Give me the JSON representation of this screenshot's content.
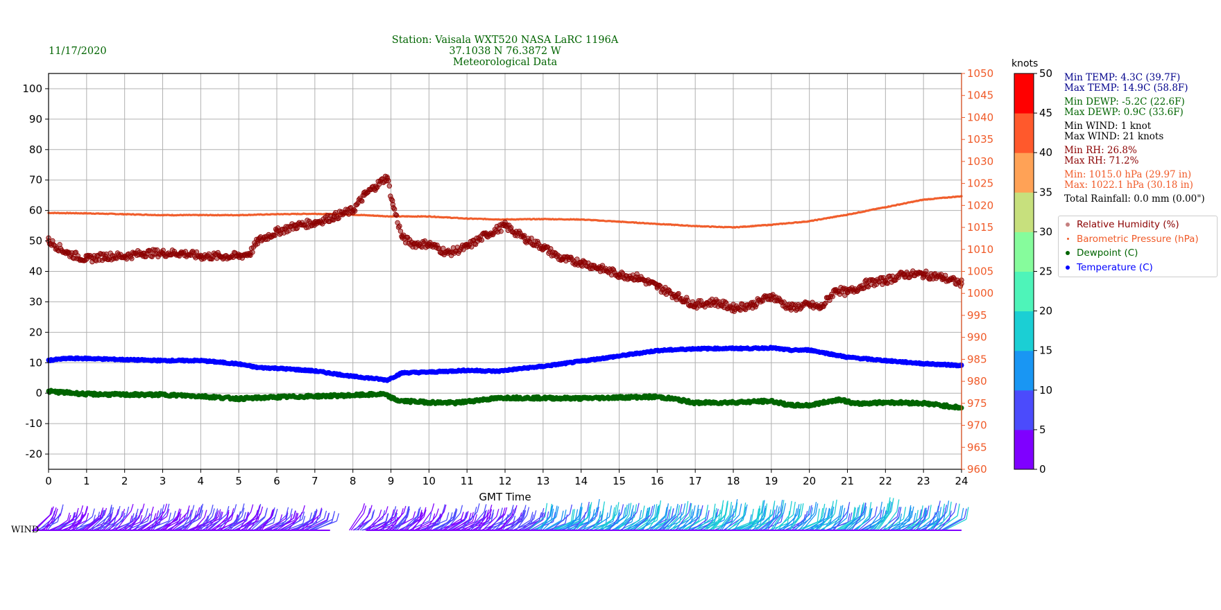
{
  "date": "11/17/2020",
  "title_lines": [
    "Station:  Vaisala WXT520  NASA LaRC 1196A",
    "37.1038 N 76.3872 W",
    "Meteorological Data"
  ],
  "wind_label": "WIND",
  "colorbar": {
    "unit": "knots",
    "ticks": [
      "0",
      "5",
      "10",
      "15",
      "20",
      "25",
      "30",
      "35",
      "40",
      "45",
      "50"
    ],
    "colors": [
      "#7f00ff",
      "#4b4bfc",
      "#1996f3",
      "#1bcfd4",
      "#4ef4b9",
      "#86fc9c",
      "#c7e07d",
      "#ffa256",
      "#ff592c",
      "#ff0000"
    ]
  },
  "stats": [
    {
      "text": "Min TEMP: 4.3C (39.7F)",
      "color": "#00008b"
    },
    {
      "text": "Max TEMP: 14.9C (58.8F)",
      "color": "#00008b"
    },
    {
      "text": "Min DEWP: -5.2C (22.6F)",
      "color": "#006400"
    },
    {
      "text": "Max DEWP: 0.9C (33.6F)",
      "color": "#006400"
    },
    {
      "text": "Min WIND: 1 knot",
      "color": "#000000"
    },
    {
      "text": "Max WIND: 21 knots",
      "color": "#000000"
    },
    {
      "text": "Min RH: 26.8%",
      "color": "#8b0000"
    },
    {
      "text": "Max RH: 71.2%",
      "color": "#8b0000"
    },
    {
      "text": "Min: 1015.0 hPa (29.97 in)",
      "color": "#f05a28"
    },
    {
      "text": "Max: 1022.1 hPa (30.18 in)",
      "color": "#f05a28"
    },
    {
      "text": "Total Rainfall: 0.0 mm (0.00\")",
      "color": "#000000"
    }
  ],
  "legend": [
    {
      "label": "Relative Humidity (%)",
      "color": "#8b0000",
      "marker": "rh"
    },
    {
      "label": "Barometric Pressure (hPa)",
      "color": "#f05a28",
      "marker": "bp"
    },
    {
      "label": "Dewpoint (C)",
      "color": "#006400",
      "marker": "dp"
    },
    {
      "label": "Temperature (C)",
      "color": "#0000ff",
      "marker": "tp"
    }
  ],
  "chart_data": {
    "type": "scatter",
    "xlabel": "GMT Time",
    "xlim": [
      0,
      24
    ],
    "x_ticks": [
      0,
      1,
      2,
      3,
      4,
      5,
      6,
      7,
      8,
      9,
      10,
      11,
      12,
      13,
      14,
      15,
      16,
      17,
      18,
      19,
      20,
      21,
      22,
      23,
      24
    ],
    "ylim": [
      -25,
      105
    ],
    "y_ticks": [
      -20,
      -10,
      0,
      10,
      20,
      30,
      40,
      50,
      60,
      70,
      80,
      90,
      100
    ],
    "y2lim": [
      960,
      1050
    ],
    "y2_ticks": [
      960,
      965,
      970,
      975,
      980,
      985,
      990,
      995,
      1000,
      1005,
      1010,
      1015,
      1020,
      1025,
      1030,
      1035,
      1040,
      1045,
      1050
    ],
    "grid": true,
    "series": [
      {
        "name": "Relative Humidity (%)",
        "axis": "left",
        "color": "#8b0000",
        "x": [
          0,
          0.5,
          1,
          1.5,
          2,
          2.5,
          3,
          3.5,
          4,
          4.5,
          5,
          5.3,
          5.5,
          6,
          6.5,
          7,
          7.5,
          8,
          8.3,
          8.6,
          8.9,
          9.05,
          9.3,
          9.6,
          10,
          10.5,
          11,
          11.5,
          12,
          12.5,
          13,
          13.5,
          14,
          14.5,
          15,
          15.5,
          16,
          16.5,
          17,
          17.5,
          18,
          18.5,
          19,
          19.5,
          20,
          20.3,
          20.7,
          21,
          21.5,
          22,
          22.5,
          23,
          23.5,
          24
        ],
        "y": [
          50,
          46,
          44,
          45,
          45,
          46,
          46,
          46,
          45,
          45,
          45,
          46,
          50,
          53,
          55,
          56,
          58,
          60,
          65,
          68,
          71,
          62,
          51,
          49,
          49,
          46,
          48,
          52,
          55,
          51,
          48,
          44,
          43,
          41,
          39,
          38,
          35,
          32,
          29,
          30,
          28,
          29,
          32,
          28,
          29,
          28,
          34,
          33,
          36,
          37,
          39,
          39,
          38,
          36
        ]
      },
      {
        "name": "Barometric Pressure (hPa)",
        "axis": "right",
        "color": "#f05a28",
        "x": [
          0,
          1,
          2,
          3,
          4,
          5,
          6,
          7,
          8,
          9,
          10,
          11,
          12,
          13,
          14,
          15,
          16,
          17,
          18,
          19,
          20,
          21,
          22,
          23,
          24
        ],
        "y": [
          1018.3,
          1018.2,
          1018.0,
          1017.8,
          1017.8,
          1017.8,
          1018.0,
          1018.1,
          1017.9,
          1017.5,
          1017.5,
          1017.0,
          1016.8,
          1016.9,
          1016.8,
          1016.3,
          1015.8,
          1015.3,
          1015.0,
          1015.6,
          1016.4,
          1017.9,
          1019.6,
          1021.3,
          1022.1
        ]
      },
      {
        "name": "Dewpoint (C)",
        "axis": "left",
        "color": "#006400",
        "x": [
          0,
          1,
          2,
          3,
          4,
          5,
          6,
          7,
          8,
          8.8,
          9.2,
          10,
          10.7,
          11.5,
          12,
          13,
          14,
          15,
          16,
          16.5,
          17,
          18,
          19,
          19.5,
          20,
          20.8,
          21.2,
          22,
          23,
          24
        ],
        "y": [
          0.6,
          -0.3,
          -0.5,
          -0.5,
          -1.0,
          -1.8,
          -1.3,
          -1.0,
          -0.7,
          -0.3,
          -2.5,
          -3.0,
          -3.2,
          -2.0,
          -1.5,
          -1.6,
          -1.7,
          -1.4,
          -1.2,
          -2.0,
          -3.2,
          -3.0,
          -2.6,
          -4.0,
          -4.0,
          -2.0,
          -3.5,
          -3.0,
          -3.3,
          -4.8
        ]
      },
      {
        "name": "Temperature (C)",
        "axis": "left",
        "color": "#0000ff",
        "x": [
          0,
          0.5,
          1,
          2,
          3,
          4,
          5,
          5.5,
          6,
          7,
          8,
          8.5,
          8.9,
          9.3,
          10,
          11,
          11.8,
          12.5,
          13,
          14,
          15,
          16,
          17,
          18,
          18.5,
          19,
          19.5,
          20,
          20.5,
          21,
          22,
          23,
          24
        ],
        "y": [
          10.8,
          11.4,
          11.4,
          11.0,
          10.7,
          10.7,
          9.6,
          8.4,
          8.2,
          7.3,
          5.5,
          4.9,
          4.3,
          6.7,
          6.9,
          7.5,
          7.2,
          8.2,
          8.8,
          10.5,
          12.2,
          14.0,
          14.6,
          14.7,
          14.7,
          14.9,
          14.1,
          14.2,
          13.0,
          11.8,
          10.7,
          9.7,
          9.1
        ]
      }
    ],
    "wind_barb_gaps": [
      [
        7.4,
        8.3
      ]
    ]
  }
}
